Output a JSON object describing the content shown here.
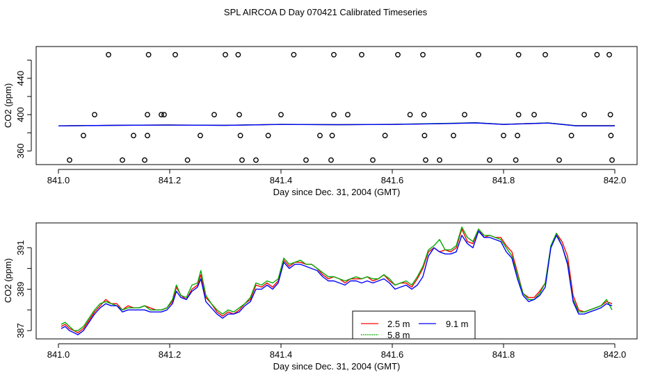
{
  "title": "SPL AIRCOA D  Day 070421  Calibrated Timeseries",
  "chart_data": [
    {
      "type": "line",
      "panel": "top",
      "xlabel": "Day since Dec. 31, 2004 (GMT)",
      "ylabel": "CO2 (ppm)",
      "xlim": [
        840.96,
        842.04
      ],
      "ylim": [
        345,
        475
      ],
      "xticks": [
        {
          "v": 841.0,
          "label": "841.0"
        },
        {
          "v": 841.2,
          "label": "841.2"
        },
        {
          "v": 841.4,
          "label": "841.4"
        },
        {
          "v": 841.6,
          "label": "841.6"
        },
        {
          "v": 841.8,
          "label": "841.8"
        },
        {
          "v": 842.0,
          "label": "842.0"
        }
      ],
      "yticks": [
        {
          "v": 360,
          "label": "360"
        },
        {
          "v": 380,
          "label": ""
        },
        {
          "v": 400,
          "label": "400"
        },
        {
          "v": 420,
          "label": ""
        },
        {
          "v": 440,
          "label": "440"
        },
        {
          "v": 460,
          "label": ""
        }
      ],
      "series": [
        {
          "name": "2.5 m",
          "color": "#ff0000",
          "x": [
            841.0,
            841.1,
            841.2,
            841.3,
            841.4,
            841.5,
            841.6,
            841.7,
            841.75,
            841.8,
            841.88,
            841.93,
            842.0
          ],
          "y": [
            387.7,
            388.3,
            388.6,
            388.3,
            389.3,
            389.0,
            389.3,
            390.3,
            391.0,
            389.3,
            390.8,
            387.8,
            387.8
          ]
        },
        {
          "name": "5.8 m",
          "color": "#00aa00",
          "x": [
            841.0,
            841.1,
            841.2,
            841.3,
            841.4,
            841.5,
            841.6,
            841.7,
            841.75,
            841.8,
            841.88,
            841.93,
            842.0
          ],
          "y": [
            387.7,
            388.3,
            388.6,
            388.3,
            389.3,
            389.0,
            389.3,
            390.4,
            391.1,
            389.3,
            390.9,
            387.8,
            387.8
          ]
        },
        {
          "name": "9.1 m",
          "color": "#0000ff",
          "x": [
            841.0,
            841.1,
            841.2,
            841.3,
            841.4,
            841.5,
            841.6,
            841.7,
            841.75,
            841.8,
            841.88,
            841.93,
            842.0
          ],
          "y": [
            387.6,
            388.2,
            388.5,
            388.2,
            389.2,
            388.9,
            389.2,
            390.2,
            390.9,
            389.2,
            390.7,
            387.7,
            387.7
          ]
        }
      ],
      "points": {
        "marker": "open-circle",
        "x": [
          841.02,
          841.045,
          841.065,
          841.09,
          841.115,
          841.135,
          841.155,
          841.16,
          841.16,
          841.162,
          841.185,
          841.19,
          841.21,
          841.232,
          841.255,
          841.28,
          841.3,
          841.323,
          841.325,
          841.327,
          841.33,
          841.355,
          841.377,
          841.4,
          841.423,
          841.445,
          841.47,
          841.49,
          841.492,
          841.495,
          841.495,
          841.52,
          841.545,
          841.565,
          841.587,
          841.61,
          841.632,
          841.655,
          841.657,
          841.658,
          841.66,
          841.685,
          841.71,
          841.73,
          841.755,
          841.775,
          841.8,
          841.822,
          841.825,
          841.827,
          841.827,
          841.855,
          841.875,
          841.9,
          841.922,
          841.945,
          841.968,
          841.99,
          841.992,
          841.993,
          841.995
        ],
        "y": [
          350,
          377,
          400,
          466,
          350,
          377,
          350,
          377,
          400,
          466,
          400,
          400,
          466,
          350,
          377,
          400,
          466,
          466,
          400,
          377,
          350,
          350,
          377,
          400,
          466,
          350,
          377,
          350,
          377,
          400,
          466,
          400,
          466,
          350,
          377,
          466,
          400,
          466,
          400,
          377,
          350,
          350,
          377,
          400,
          466,
          350,
          377,
          350,
          377,
          400,
          466,
          400,
          466,
          350,
          377,
          400,
          466,
          466,
          400,
          377,
          350
        ]
      }
    },
    {
      "type": "line",
      "panel": "bottom",
      "xlabel": "Day since Dec. 31, 2004 (GMT)",
      "ylabel": "CO2 (ppm)",
      "xlim": [
        840.96,
        842.04
      ],
      "ylim": [
        386.6,
        392.2
      ],
      "xticks": [
        {
          "v": 841.0,
          "label": "841.0"
        },
        {
          "v": 841.2,
          "label": "841.2"
        },
        {
          "v": 841.4,
          "label": "841.4"
        },
        {
          "v": 841.6,
          "label": "841.6"
        },
        {
          "v": 841.8,
          "label": "841.8"
        },
        {
          "v": 842.0,
          "label": "842.0"
        }
      ],
      "yticks": [
        {
          "v": 387,
          "label": "387"
        },
        {
          "v": 388,
          "label": ""
        },
        {
          "v": 389,
          "label": "389"
        },
        {
          "v": 390,
          "label": ""
        },
        {
          "v": 391,
          "label": "391"
        }
      ],
      "legend": {
        "position": "bottom-center",
        "entries": [
          "2.5 m",
          "9.1 m",
          "5.8 m"
        ]
      },
      "series": [
        {
          "name": "2.5 m",
          "color": "#ff0000",
          "x": [
            841.005,
            841.012,
            841.02,
            841.028,
            841.035,
            841.045,
            841.055,
            841.065,
            841.075,
            841.085,
            841.095,
            841.105,
            841.115,
            841.125,
            841.135,
            841.145,
            841.155,
            841.165,
            841.175,
            841.185,
            841.195,
            841.205,
            841.212,
            841.22,
            841.23,
            841.24,
            841.25,
            841.256,
            841.265,
            841.275,
            841.285,
            841.295,
            841.305,
            841.315,
            841.325,
            841.335,
            841.345,
            841.355,
            841.365,
            841.375,
            841.385,
            841.395,
            841.405,
            841.415,
            841.425,
            841.435,
            841.445,
            841.455,
            841.465,
            841.475,
            841.485,
            841.495,
            841.505,
            841.515,
            841.525,
            841.535,
            841.545,
            841.555,
            841.565,
            841.575,
            841.585,
            841.595,
            841.605,
            841.615,
            841.625,
            841.635,
            841.645,
            841.655,
            841.665,
            841.675,
            841.685,
            841.695,
            841.705,
            841.715,
            841.725,
            841.735,
            841.745,
            841.755,
            841.765,
            841.775,
            841.785,
            841.795,
            841.805,
            841.815,
            841.825,
            841.835,
            841.845,
            841.855,
            841.865,
            841.875,
            841.885,
            841.895,
            841.905,
            841.915,
            841.925,
            841.935,
            841.945,
            841.955,
            841.965,
            841.975,
            841.985,
            841.995
          ],
          "y": [
            387.2,
            387.3,
            387.1,
            387.0,
            386.9,
            387.1,
            387.5,
            387.9,
            388.2,
            388.5,
            388.3,
            388.3,
            388.0,
            388.2,
            388.1,
            388.1,
            388.2,
            388.1,
            388.0,
            388.0,
            388.1,
            388.4,
            389.1,
            388.7,
            388.5,
            389.0,
            389.2,
            389.7,
            388.6,
            388.3,
            387.9,
            387.7,
            387.9,
            387.8,
            388.0,
            388.3,
            388.5,
            389.2,
            389.1,
            389.3,
            389.1,
            389.4,
            390.4,
            390.1,
            390.3,
            390.3,
            390.2,
            390.2,
            390.0,
            389.7,
            389.5,
            389.6,
            389.5,
            389.3,
            389.5,
            389.5,
            389.5,
            389.6,
            389.4,
            389.5,
            389.7,
            389.4,
            389.2,
            389.3,
            389.3,
            389.1,
            389.5,
            390.0,
            390.8,
            391.0,
            390.8,
            390.9,
            390.8,
            391.0,
            391.9,
            391.3,
            391.2,
            391.9,
            391.5,
            391.6,
            391.5,
            391.5,
            391.1,
            390.8,
            389.8,
            388.8,
            388.6,
            388.6,
            388.9,
            389.3,
            391.0,
            391.7,
            391.3,
            390.6,
            388.7,
            388.0,
            387.9,
            388.0,
            388.1,
            388.2,
            388.4,
            388.3
          ]
        },
        {
          "name": "5.8 m",
          "color": "#00aa00",
          "x": [
            841.005,
            841.012,
            841.02,
            841.028,
            841.035,
            841.045,
            841.055,
            841.065,
            841.075,
            841.085,
            841.095,
            841.105,
            841.115,
            841.125,
            841.135,
            841.145,
            841.155,
            841.165,
            841.175,
            841.185,
            841.195,
            841.205,
            841.212,
            841.22,
            841.23,
            841.24,
            841.25,
            841.256,
            841.265,
            841.275,
            841.285,
            841.295,
            841.305,
            841.315,
            841.325,
            841.335,
            841.345,
            841.355,
            841.365,
            841.375,
            841.385,
            841.395,
            841.405,
            841.415,
            841.425,
            841.435,
            841.445,
            841.455,
            841.465,
            841.475,
            841.485,
            841.495,
            841.505,
            841.515,
            841.525,
            841.535,
            841.545,
            841.555,
            841.565,
            841.575,
            841.585,
            841.595,
            841.605,
            841.615,
            841.625,
            841.635,
            841.645,
            841.655,
            841.665,
            841.675,
            841.685,
            841.695,
            841.705,
            841.715,
            841.725,
            841.735,
            841.745,
            841.755,
            841.765,
            841.775,
            841.785,
            841.795,
            841.805,
            841.815,
            841.825,
            841.835,
            841.845,
            841.855,
            841.865,
            841.875,
            841.885,
            841.895,
            841.905,
            841.915,
            841.925,
            841.935,
            841.945,
            841.955,
            841.965,
            841.975,
            841.985,
            841.995
          ],
          "y": [
            387.3,
            387.4,
            387.2,
            387.0,
            387.0,
            387.2,
            387.6,
            388.0,
            388.3,
            388.4,
            388.3,
            388.2,
            388.0,
            388.1,
            388.1,
            388.1,
            388.2,
            388.0,
            388.0,
            388.0,
            388.1,
            388.5,
            389.2,
            388.7,
            388.6,
            389.2,
            389.3,
            389.9,
            388.7,
            388.3,
            388.0,
            387.8,
            388.0,
            387.9,
            388.1,
            388.3,
            388.6,
            389.3,
            389.2,
            389.4,
            389.3,
            389.5,
            390.5,
            390.2,
            390.3,
            390.4,
            390.2,
            390.2,
            390.0,
            389.8,
            389.6,
            389.6,
            389.5,
            389.4,
            389.5,
            389.6,
            389.5,
            389.6,
            389.5,
            389.5,
            389.7,
            389.5,
            389.2,
            389.3,
            389.4,
            389.2,
            389.6,
            390.1,
            390.9,
            391.1,
            391.4,
            390.9,
            390.9,
            391.1,
            392.0,
            391.5,
            391.3,
            391.9,
            391.6,
            391.6,
            391.5,
            391.4,
            391.0,
            390.6,
            389.7,
            388.8,
            388.5,
            388.5,
            388.8,
            389.3,
            391.1,
            391.7,
            391.1,
            390.3,
            388.5,
            387.9,
            387.9,
            388.0,
            388.1,
            388.2,
            388.5,
            388.0
          ]
        },
        {
          "name": "9.1 m",
          "color": "#0000ff",
          "x": [
            841.005,
            841.012,
            841.02,
            841.028,
            841.035,
            841.045,
            841.055,
            841.065,
            841.075,
            841.085,
            841.095,
            841.105,
            841.115,
            841.125,
            841.135,
            841.145,
            841.155,
            841.165,
            841.175,
            841.185,
            841.195,
            841.205,
            841.212,
            841.22,
            841.23,
            841.24,
            841.25,
            841.256,
            841.265,
            841.275,
            841.285,
            841.295,
            841.305,
            841.315,
            841.325,
            841.335,
            841.345,
            841.355,
            841.365,
            841.375,
            841.385,
            841.395,
            841.405,
            841.415,
            841.425,
            841.435,
            841.445,
            841.455,
            841.465,
            841.475,
            841.485,
            841.495,
            841.505,
            841.515,
            841.525,
            841.535,
            841.545,
            841.555,
            841.565,
            841.575,
            841.585,
            841.595,
            841.605,
            841.615,
            841.625,
            841.635,
            841.645,
            841.655,
            841.665,
            841.675,
            841.685,
            841.695,
            841.705,
            841.715,
            841.725,
            841.735,
            841.745,
            841.755,
            841.765,
            841.775,
            841.785,
            841.795,
            841.805,
            841.815,
            841.825,
            841.835,
            841.845,
            841.855,
            841.865,
            841.875,
            841.885,
            841.895,
            841.905,
            841.915,
            841.925,
            841.935,
            841.945,
            841.955,
            841.965,
            841.975,
            841.985,
            841.995
          ],
          "y": [
            387.1,
            387.2,
            387.0,
            386.9,
            386.8,
            387.0,
            387.4,
            387.8,
            388.1,
            388.3,
            388.2,
            388.2,
            387.9,
            388.0,
            388.0,
            388.0,
            388.0,
            387.9,
            387.9,
            387.9,
            388.0,
            388.3,
            388.9,
            388.6,
            388.5,
            388.9,
            389.1,
            389.5,
            388.4,
            388.1,
            387.8,
            387.6,
            387.8,
            387.8,
            387.9,
            388.2,
            388.4,
            389.0,
            389.0,
            389.2,
            389.0,
            389.3,
            390.3,
            390.0,
            390.2,
            390.2,
            390.1,
            390.0,
            389.9,
            389.6,
            389.4,
            389.4,
            389.3,
            389.2,
            389.4,
            389.4,
            389.3,
            389.4,
            389.3,
            389.4,
            389.5,
            389.3,
            389.0,
            389.1,
            389.2,
            389.0,
            389.2,
            389.6,
            390.6,
            391.0,
            390.8,
            390.7,
            390.7,
            390.8,
            391.6,
            391.2,
            391.0,
            391.8,
            391.5,
            391.5,
            391.4,
            391.3,
            390.8,
            390.5,
            389.5,
            388.7,
            388.4,
            388.5,
            388.7,
            389.1,
            391.0,
            391.6,
            391.1,
            390.2,
            388.4,
            387.8,
            387.8,
            387.9,
            388.0,
            388.1,
            388.3,
            388.2
          ]
        }
      ]
    }
  ]
}
